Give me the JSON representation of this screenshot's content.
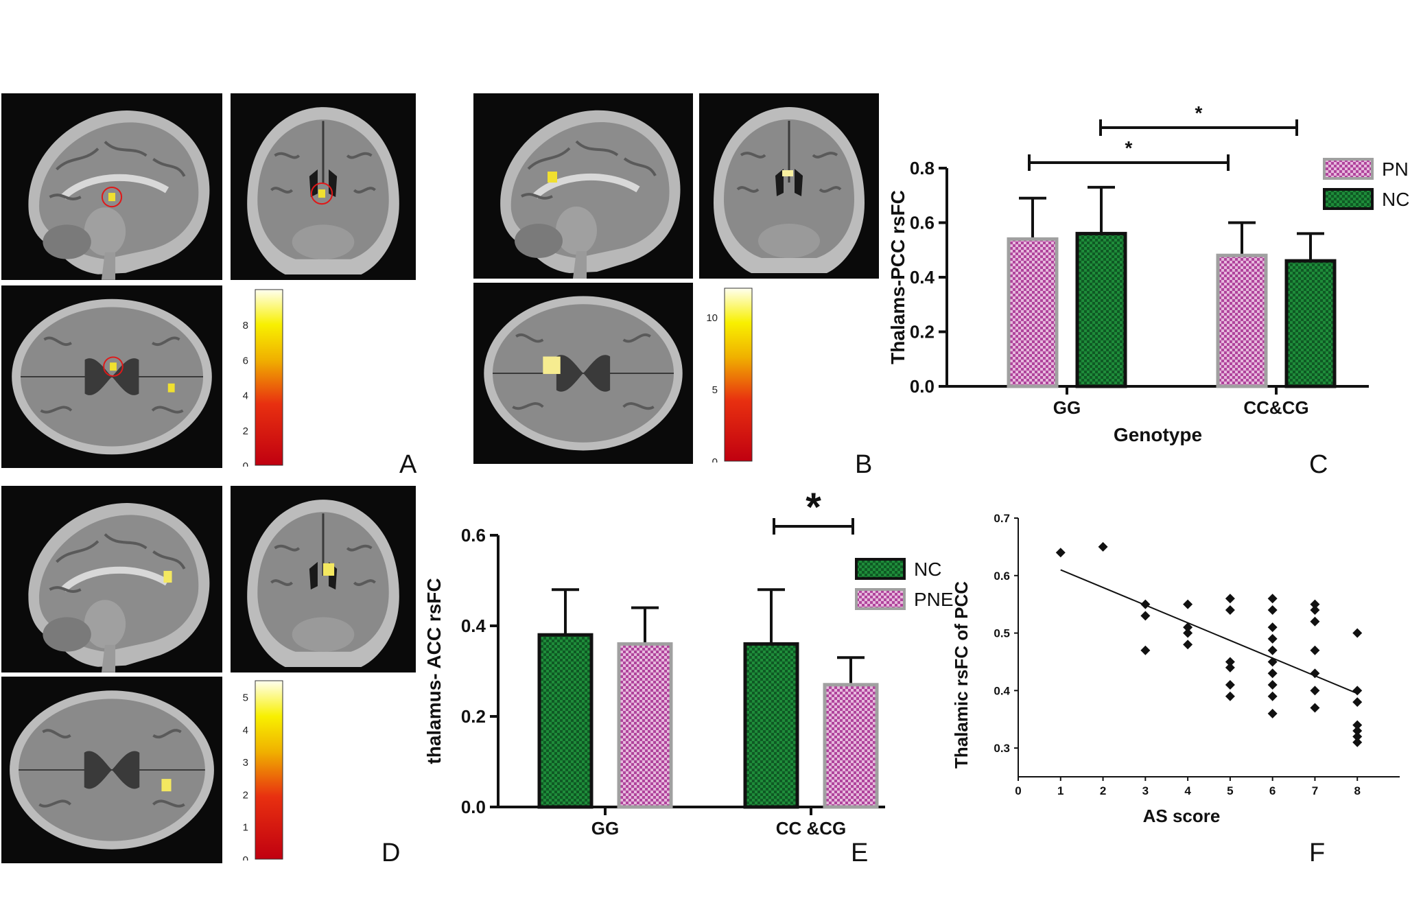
{
  "panels": {
    "A": {
      "letter": "A",
      "colorbar_ticks": [
        "0",
        "2",
        "4",
        "6",
        "8"
      ],
      "colorbar_max": 10
    },
    "B": {
      "letter": "B",
      "colorbar_ticks": [
        "0",
        "5",
        "10"
      ],
      "colorbar_max": 12
    },
    "C": {
      "letter": "C"
    },
    "D": {
      "letter": "D",
      "colorbar_ticks": [
        "0",
        "1",
        "2",
        "3",
        "4",
        "5"
      ],
      "colorbar_max": 5.5
    },
    "E": {
      "letter": "E"
    },
    "F": {
      "letter": "F"
    }
  },
  "colors": {
    "pne": "#b0449c",
    "pne_light": "#e6b8dc",
    "nc": "#1e8c3a",
    "nc_light": "#0c4a1c",
    "highlight_circle": "#e01818"
  },
  "chart_data": [
    {
      "id": "C",
      "type": "bar",
      "title": "",
      "xlabel": "Genotype",
      "ylabel": "Thalams-PCC rsFC",
      "categories": [
        "GG",
        "CC&CG"
      ],
      "series": [
        {
          "name": "PNE",
          "values": [
            0.54,
            0.48
          ],
          "errors": [
            0.15,
            0.12
          ]
        },
        {
          "name": "NC",
          "values": [
            0.56,
            0.46
          ],
          "errors": [
            0.17,
            0.1
          ]
        }
      ],
      "ylim": [
        0,
        0.8
      ],
      "yticks": [
        "0.0",
        "0.2",
        "0.4",
        "0.6",
        "0.8"
      ],
      "legend": [
        "PNE",
        "NC"
      ],
      "significance": [
        "*",
        "*"
      ]
    },
    {
      "id": "E",
      "type": "bar",
      "title": "",
      "xlabel": "",
      "ylabel": "thalamus- ACC rsFC",
      "categories": [
        "GG",
        "CC &CG"
      ],
      "series": [
        {
          "name": "NC",
          "values": [
            0.38,
            0.36
          ],
          "errors": [
            0.1,
            0.12
          ]
        },
        {
          "name": "PNE",
          "values": [
            0.36,
            0.27
          ],
          "errors": [
            0.08,
            0.06
          ]
        }
      ],
      "ylim": [
        0,
        0.6
      ],
      "yticks": [
        "0.0",
        "0.2",
        "0.4",
        "0.6"
      ],
      "legend": [
        "NC",
        "PNE"
      ],
      "significance": [
        "*"
      ]
    },
    {
      "id": "F",
      "type": "scatter",
      "title": "",
      "xlabel": "AS score",
      "ylabel": "Thalamic rsFC of PCC",
      "xlim": [
        0,
        9
      ],
      "ylim": [
        0.25,
        0.7
      ],
      "xticks": [
        "0",
        "1",
        "2",
        "3",
        "4",
        "5",
        "6",
        "7",
        "8"
      ],
      "yticks": [
        "0.3",
        "0.4",
        "0.5",
        "0.6",
        "0.7"
      ],
      "points": [
        [
          1,
          0.64
        ],
        [
          2,
          0.65
        ],
        [
          3,
          0.55
        ],
        [
          3,
          0.53
        ],
        [
          3,
          0.47
        ],
        [
          4,
          0.55
        ],
        [
          4,
          0.51
        ],
        [
          4,
          0.5
        ],
        [
          4,
          0.48
        ],
        [
          5,
          0.56
        ],
        [
          5,
          0.54
        ],
        [
          5,
          0.45
        ],
        [
          5,
          0.44
        ],
        [
          5,
          0.41
        ],
        [
          5,
          0.39
        ],
        [
          6,
          0.56
        ],
        [
          6,
          0.54
        ],
        [
          6,
          0.51
        ],
        [
          6,
          0.49
        ],
        [
          6,
          0.47
        ],
        [
          6,
          0.45
        ],
        [
          6,
          0.43
        ],
        [
          6,
          0.41
        ],
        [
          6,
          0.39
        ],
        [
          6,
          0.36
        ],
        [
          7,
          0.55
        ],
        [
          7,
          0.54
        ],
        [
          7,
          0.52
        ],
        [
          7,
          0.47
        ],
        [
          7,
          0.43
        ],
        [
          7,
          0.4
        ],
        [
          7,
          0.37
        ],
        [
          8,
          0.5
        ],
        [
          8,
          0.4
        ],
        [
          8,
          0.38
        ],
        [
          8,
          0.34
        ],
        [
          8,
          0.33
        ],
        [
          8,
          0.32
        ],
        [
          8,
          0.31
        ]
      ],
      "fit_line": {
        "x": [
          1,
          8
        ],
        "y": [
          0.61,
          0.395
        ]
      }
    }
  ]
}
